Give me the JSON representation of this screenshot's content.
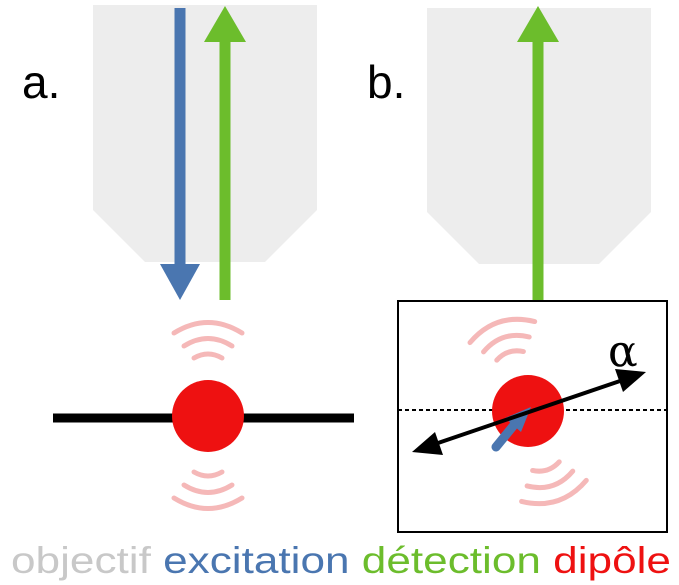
{
  "panels": {
    "a": {
      "label": "a."
    },
    "b": {
      "label": "b.",
      "angle_label": "α"
    }
  },
  "legend": {
    "objective": {
      "text": "objectif",
      "color": "#c8c8c8"
    },
    "excitation": {
      "text": "excitation",
      "color": "#4a76b0"
    },
    "detection": {
      "text": "détection",
      "color": "#6cbd2c"
    },
    "dipole": {
      "text": "dipôle",
      "color": "#ee1111"
    }
  },
  "colors": {
    "objective_fill": "#ededed",
    "emission_waves": "#f5b8b8",
    "dipole_axis": "#000000"
  }
}
